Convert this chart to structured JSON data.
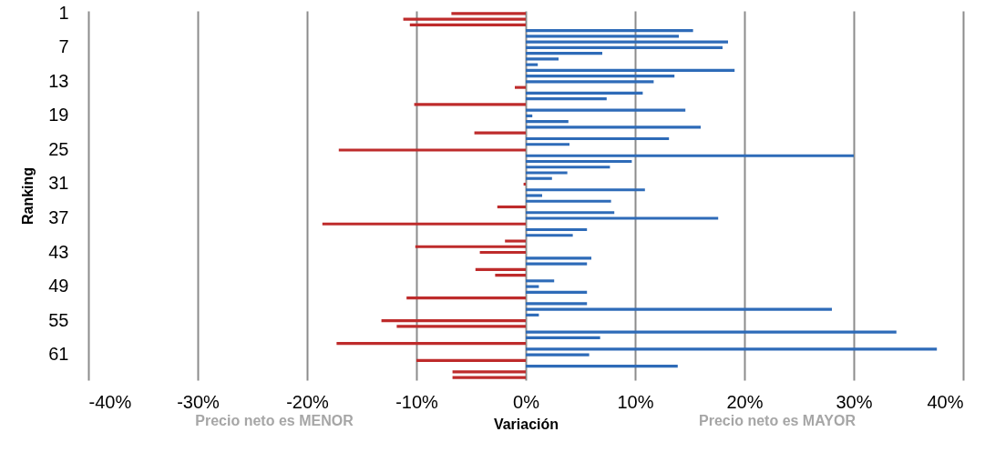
{
  "chart_data": {
    "type": "bar",
    "orientation": "horizontal",
    "xlabel": "Variación",
    "ylabel": "Ranking",
    "annotations": [
      "Precio neto es MENOR",
      "Precio neto es MAYOR"
    ],
    "categories": [
      "1",
      null,
      null,
      null,
      null,
      null,
      "7",
      null,
      null,
      null,
      null,
      null,
      "13",
      null,
      null,
      null,
      null,
      null,
      "19",
      null,
      null,
      null,
      null,
      null,
      "25",
      null,
      null,
      null,
      null,
      null,
      "31",
      null,
      null,
      null,
      null,
      null,
      "37",
      null,
      null,
      null,
      null,
      null,
      "43",
      null,
      null,
      null,
      null,
      null,
      "49",
      null,
      null,
      null,
      null,
      null,
      "55",
      null,
      null,
      null,
      null,
      null,
      "61",
      null,
      null,
      null,
      null
    ],
    "values": [
      -6.8,
      -11.2,
      -10.6,
      15.3,
      14.0,
      18.5,
      18.0,
      7.0,
      3.0,
      1.1,
      19.1,
      13.6,
      11.7,
      -1.0,
      10.7,
      7.4,
      -10.2,
      14.6,
      0.6,
      3.9,
      16.0,
      -4.7,
      13.1,
      4.0,
      -17.1,
      30.0,
      9.7,
      7.7,
      3.8,
      2.4,
      -0.2,
      10.9,
      1.5,
      7.8,
      -2.6,
      8.1,
      17.6,
      -18.6,
      5.6,
      4.3,
      -1.9,
      -10.1,
      -4.2,
      6.0,
      5.6,
      -4.6,
      -2.8,
      2.6,
      1.2,
      5.6,
      -10.9,
      5.6,
      28.0,
      1.2,
      -13.2,
      -11.8,
      33.9,
      6.8,
      -17.3,
      37.6,
      5.8,
      -10.0,
      13.9,
      -6.7,
      -6.7
    ],
    "colors": [
      "#be2b2b",
      "#be2b2b",
      "#be2b2b",
      "#2e6bb8",
      "#2e6bb8",
      "#2e6bb8",
      "#2e6bb8",
      "#2e6bb8",
      "#2e6bb8",
      "#2e6bb8",
      "#2e6bb8",
      "#2e6bb8",
      "#2e6bb8",
      "#be2b2b",
      "#2e6bb8",
      "#2e6bb8",
      "#be2b2b",
      "#2e6bb8",
      "#2e6bb8",
      "#2e6bb8",
      "#2e6bb8",
      "#be2b2b",
      "#2e6bb8",
      "#2e6bb8",
      "#be2b2b",
      "#2e6bb8",
      "#2e6bb8",
      "#2e6bb8",
      "#2e6bb8",
      "#2e6bb8",
      "#be2b2b",
      "#2e6bb8",
      "#2e6bb8",
      "#2e6bb8",
      "#be2b2b",
      "#2e6bb8",
      "#2e6bb8",
      "#be2b2b",
      "#2e6bb8",
      "#2e6bb8",
      "#be2b2b",
      "#be2b2b",
      "#be2b2b",
      "#2e6bb8",
      "#2e6bb8",
      "#be2b2b",
      "#be2b2b",
      "#2e6bb8",
      "#2e6bb8",
      "#2e6bb8",
      "#be2b2b",
      "#2e6bb8",
      "#2e6bb8",
      "#2e6bb8",
      "#be2b2b",
      "#be2b2b",
      "#2e6bb8",
      "#2e6bb8",
      "#be2b2b",
      "#2e6bb8",
      "#2e6bb8",
      "#be2b2b",
      "#2e6bb8",
      "#be2b2b",
      "#be2b2b"
    ],
    "xlim": [
      -40,
      40
    ],
    "xticks": [
      {
        "value": -40,
        "label": "-40%"
      },
      {
        "value": -30,
        "label": "-30%"
      },
      {
        "value": -20,
        "label": "-20%"
      },
      {
        "value": -10,
        "label": "-10%"
      },
      {
        "value": 0,
        "label": "0%"
      },
      {
        "value": 10,
        "label": "10%"
      },
      {
        "value": 20,
        "label": "20%"
      },
      {
        "value": 30,
        "label": "30%"
      },
      {
        "value": 40,
        "label": "40%"
      }
    ],
    "grid": "x"
  }
}
